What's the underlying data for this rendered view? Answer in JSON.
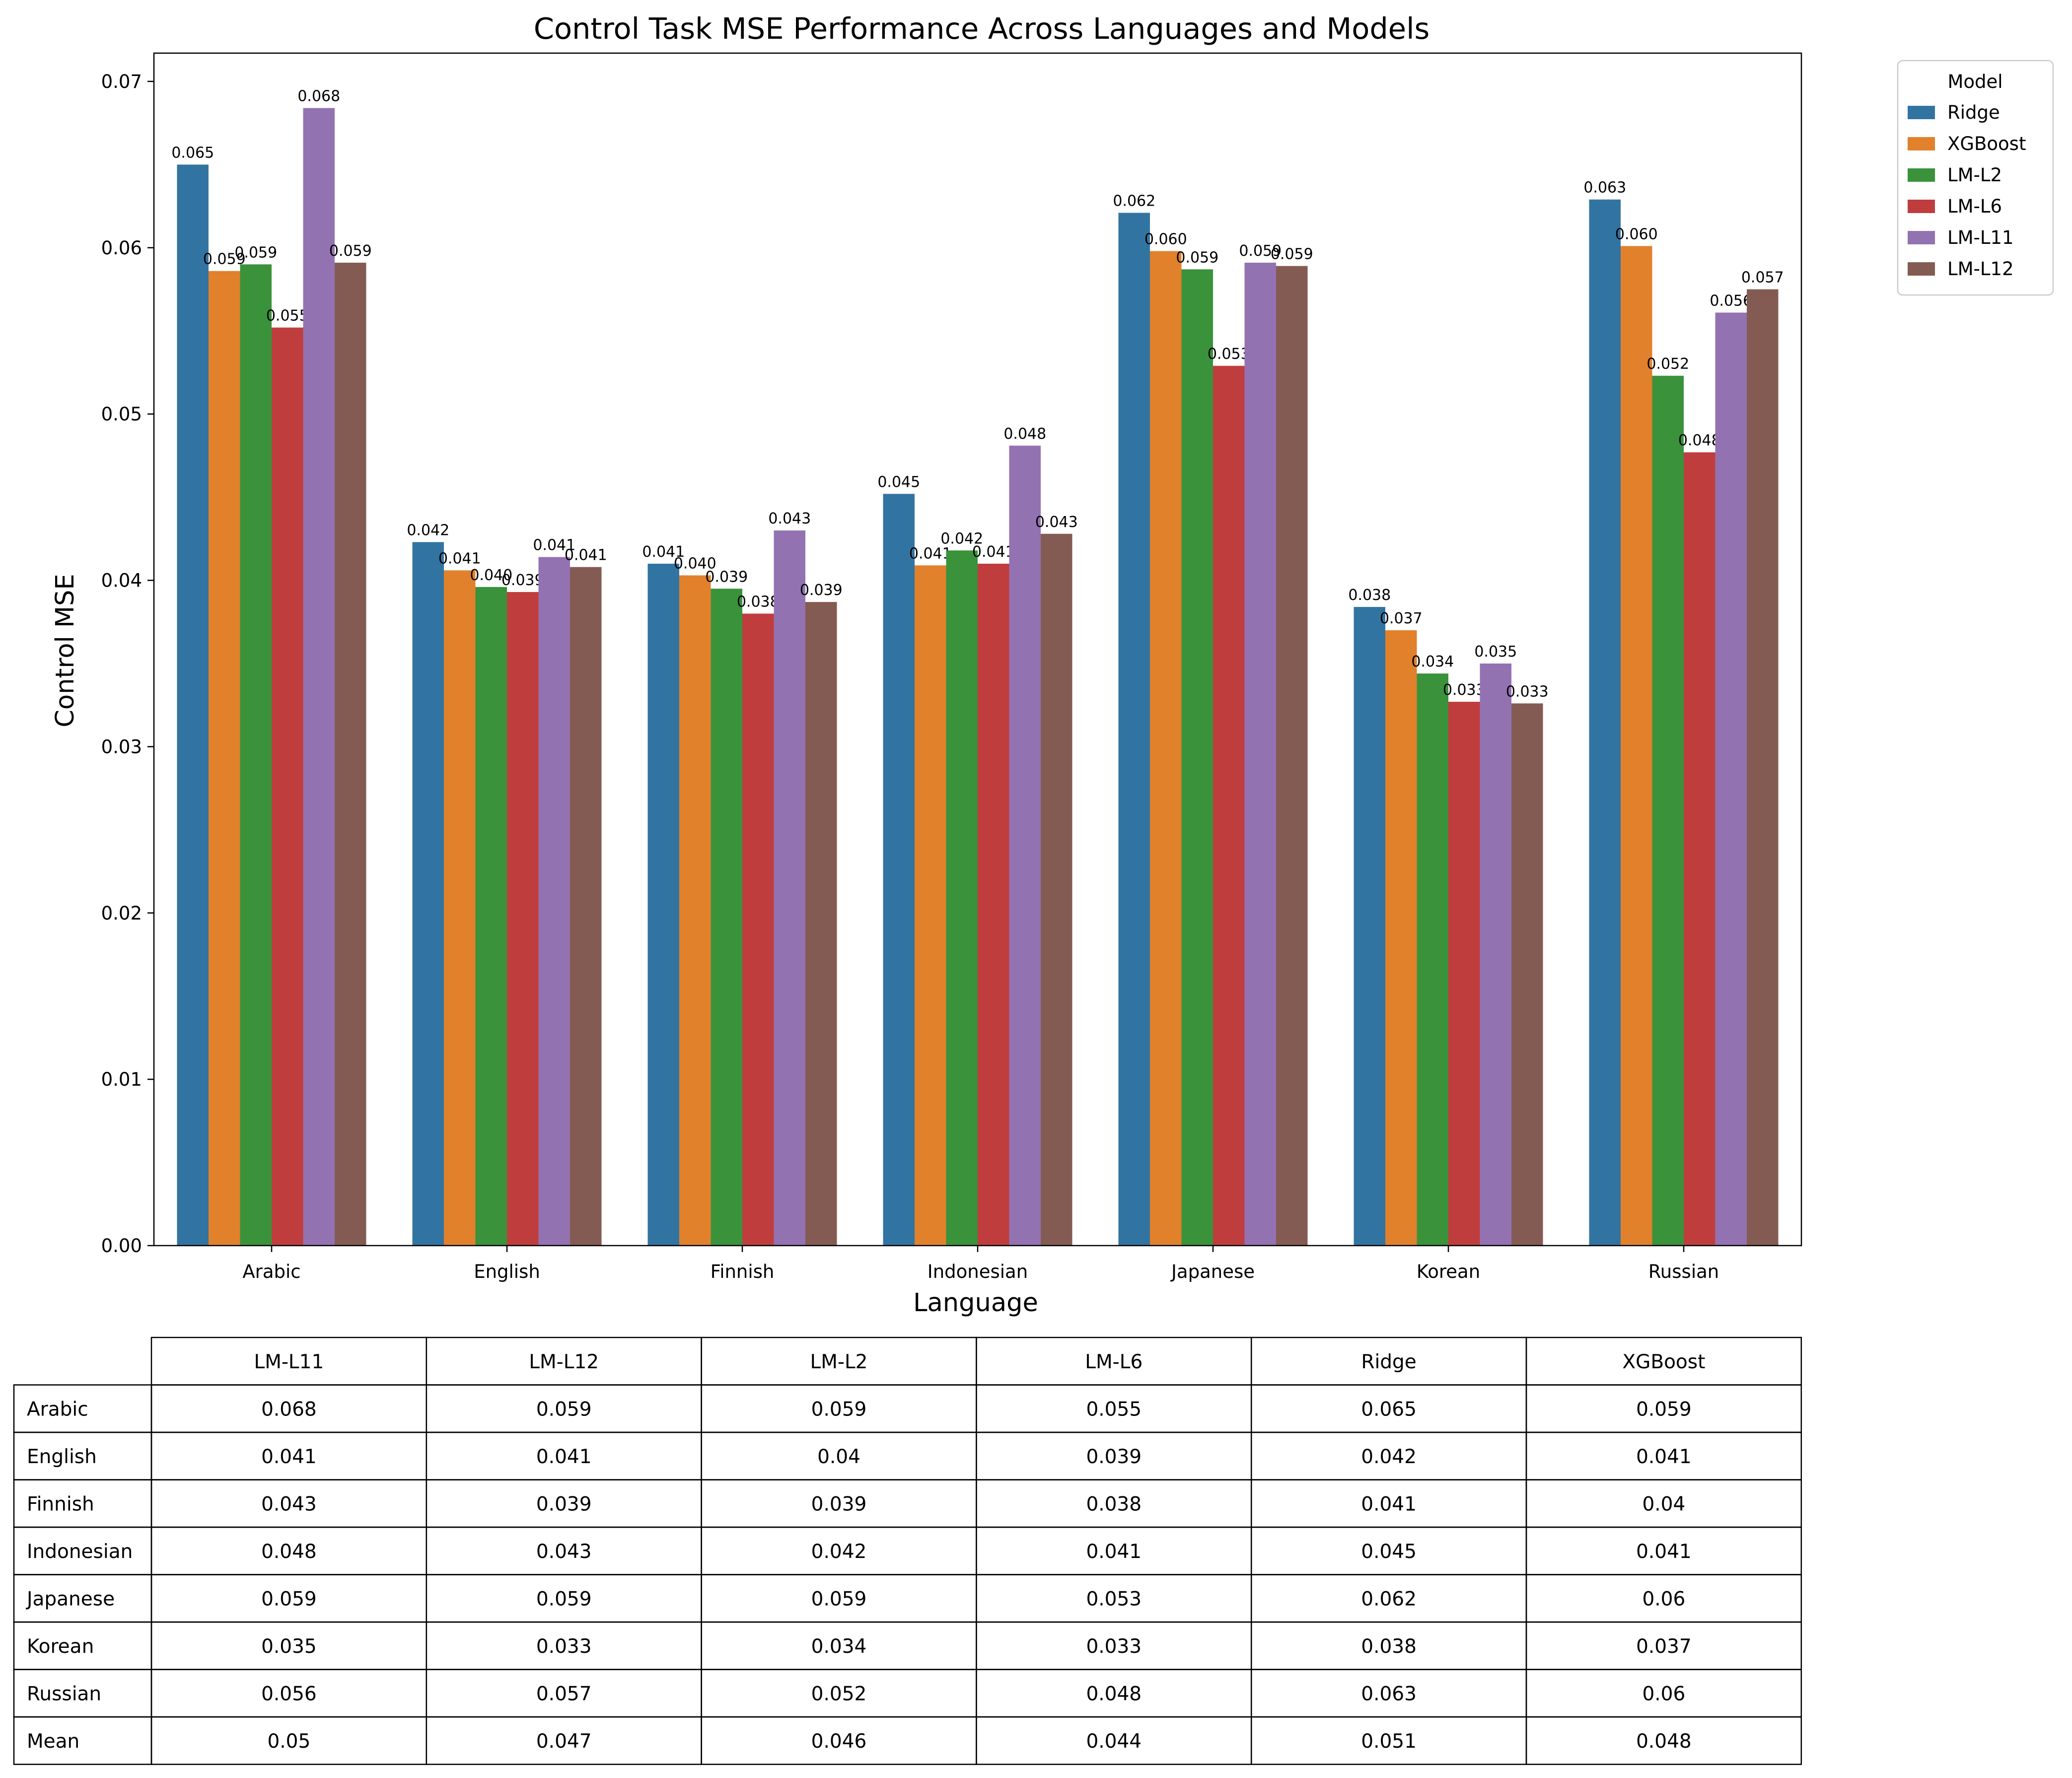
{
  "chart_data": {
    "type": "bar",
    "title": "Control Task MSE Performance Across Languages and Models",
    "xlabel": "Language",
    "ylabel": "Control MSE",
    "ylim": [
      0,
      0.0717
    ],
    "yticks": [
      "0.00",
      "0.01",
      "0.02",
      "0.03",
      "0.04",
      "0.05",
      "0.06",
      "0.07"
    ],
    "grid": false,
    "legend_position": "outside-top-right",
    "legend_title": "Model",
    "categories": [
      "Arabic",
      "English",
      "Finnish",
      "Indonesian",
      "Japanese",
      "Korean",
      "Russian"
    ],
    "series": [
      {
        "name": "Ridge",
        "color": "#3274a1",
        "values": [
          0.065,
          0.0423,
          0.041,
          0.0452,
          0.0621,
          0.0384,
          0.0629
        ],
        "labels": [
          "0.065",
          "0.042",
          "0.041",
          "0.045",
          "0.062",
          "0.038",
          "0.063"
        ]
      },
      {
        "name": "XGBoost",
        "color": "#e1812c",
        "values": [
          0.0586,
          0.0406,
          0.0403,
          0.0409,
          0.0598,
          0.037,
          0.0601
        ],
        "labels": [
          "0.059",
          "0.041",
          "0.040",
          "0.041",
          "0.060",
          "0.037",
          "0.060"
        ]
      },
      {
        "name": "LM-L2",
        "color": "#3a923a",
        "values": [
          0.059,
          0.0396,
          0.0395,
          0.0418,
          0.0587,
          0.0344,
          0.0523
        ],
        "labels": [
          "0.059",
          "0.040",
          "0.039",
          "0.042",
          "0.059",
          "0.034",
          "0.052"
        ]
      },
      {
        "name": "LM-L6",
        "color": "#c03d3e",
        "values": [
          0.0552,
          0.0393,
          0.038,
          0.041,
          0.0529,
          0.0327,
          0.0477
        ],
        "labels": [
          "0.055",
          "0.039",
          "0.038",
          "0.041",
          "0.053",
          "0.033",
          "0.048"
        ]
      },
      {
        "name": "LM-L11",
        "color": "#9372b2",
        "values": [
          0.0684,
          0.0414,
          0.043,
          0.0481,
          0.0591,
          0.035,
          0.0561
        ],
        "labels": [
          "0.068",
          "0.041",
          "0.043",
          "0.048",
          "0.059",
          "0.035",
          "0.056"
        ]
      },
      {
        "name": "LM-L12",
        "color": "#845b53",
        "values": [
          0.0591,
          0.0408,
          0.0387,
          0.0428,
          0.0589,
          0.0326,
          0.0575
        ],
        "labels": [
          "0.059",
          "0.041",
          "0.039",
          "0.043",
          "0.059",
          "0.033",
          "0.057"
        ]
      }
    ],
    "table": {
      "columns": [
        "LM-L11",
        "LM-L12",
        "LM-L2",
        "LM-L6",
        "Ridge",
        "XGBoost"
      ],
      "rows": [
        {
          "label": "Arabic",
          "values": [
            "0.068",
            "0.059",
            "0.059",
            "0.055",
            "0.065",
            "0.059"
          ]
        },
        {
          "label": "English",
          "values": [
            "0.041",
            "0.041",
            "0.04",
            "0.039",
            "0.042",
            "0.041"
          ]
        },
        {
          "label": "Finnish",
          "values": [
            "0.043",
            "0.039",
            "0.039",
            "0.038",
            "0.041",
            "0.04"
          ]
        },
        {
          "label": "Indonesian",
          "values": [
            "0.048",
            "0.043",
            "0.042",
            "0.041",
            "0.045",
            "0.041"
          ]
        },
        {
          "label": "Japanese",
          "values": [
            "0.059",
            "0.059",
            "0.059",
            "0.053",
            "0.062",
            "0.06"
          ]
        },
        {
          "label": "Korean",
          "values": [
            "0.035",
            "0.033",
            "0.034",
            "0.033",
            "0.038",
            "0.037"
          ]
        },
        {
          "label": "Russian",
          "values": [
            "0.056",
            "0.057",
            "0.052",
            "0.048",
            "0.063",
            "0.06"
          ]
        },
        {
          "label": "Mean",
          "values": [
            "0.05",
            "0.047",
            "0.046",
            "0.044",
            "0.051",
            "0.048"
          ]
        }
      ]
    }
  }
}
